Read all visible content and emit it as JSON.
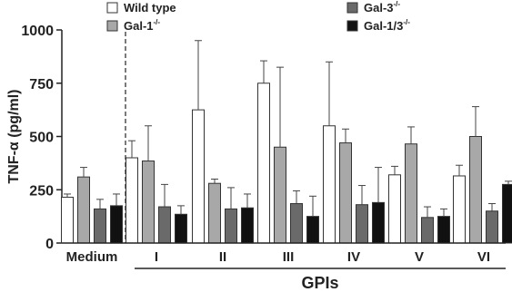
{
  "chart_data": {
    "type": "bar",
    "ylabel": "TNF-α (pg/ml)",
    "xlabel": "GPIs",
    "ylim": [
      0,
      1000
    ],
    "yticks": [
      0,
      250,
      500,
      750,
      1000
    ],
    "categories": [
      "Medium",
      "I",
      "II",
      "III",
      "IV",
      "V",
      "VI"
    ],
    "series": [
      {
        "name": "Wild type",
        "sup": "",
        "color": "#ffffff",
        "values": [
          215,
          400,
          625,
          750,
          550,
          320,
          315
        ],
        "errors": [
          15,
          80,
          325,
          105,
          300,
          40,
          50
        ]
      },
      {
        "name": "Gal-1",
        "sup": "-/-",
        "color": "#a8a8a8",
        "values": [
          310,
          385,
          280,
          450,
          470,
          465,
          500
        ],
        "errors": [
          45,
          165,
          20,
          375,
          65,
          80,
          140
        ]
      },
      {
        "name": "Gal-3",
        "sup": "-/-",
        "color": "#6a6a6a",
        "values": [
          160,
          170,
          160,
          185,
          180,
          120,
          150
        ],
        "errors": [
          45,
          105,
          100,
          60,
          90,
          50,
          35
        ]
      },
      {
        "name": "Gal-1/3",
        "sup": "-/-",
        "color": "#111111",
        "values": [
          175,
          135,
          165,
          125,
          190,
          125,
          275
        ],
        "errors": [
          55,
          40,
          65,
          95,
          165,
          35,
          15
        ]
      }
    ],
    "legend_position": "top"
  }
}
